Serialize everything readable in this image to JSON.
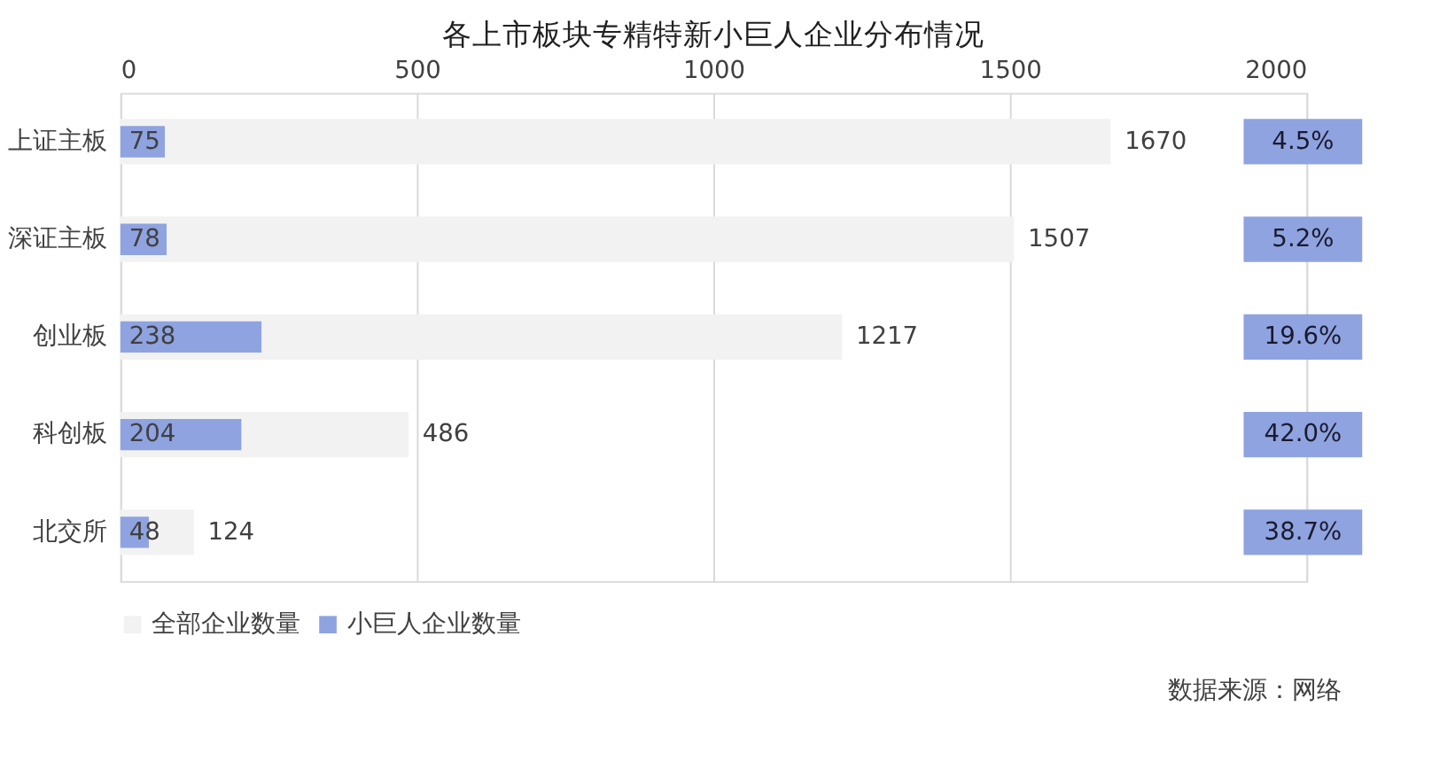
{
  "chart_data": {
    "type": "bar",
    "orientation": "horizontal",
    "title": "各上市板块专精特新小巨人企业分布情况",
    "categories": [
      "上证主板",
      "深证主板",
      "创业板",
      "科创板",
      "北交所"
    ],
    "series": [
      {
        "name": "全部企业数量",
        "color": "#f2f2f2",
        "values": [
          1670,
          1507,
          1217,
          486,
          124
        ]
      },
      {
        "name": "小巨人企业数量",
        "color": "#8fa3e0",
        "values": [
          75,
          78,
          238,
          204,
          48
        ]
      }
    ],
    "xlim": [
      0,
      2000
    ],
    "xticks": [
      0,
      500,
      1000,
      1500,
      2000
    ],
    "grid": "x",
    "legend": "bottom",
    "data_labels": true,
    "annotations": [
      "4.5%",
      "5.2%",
      "19.6%",
      "42.0%",
      "38.7%",
      "数据来源：网络"
    ]
  }
}
